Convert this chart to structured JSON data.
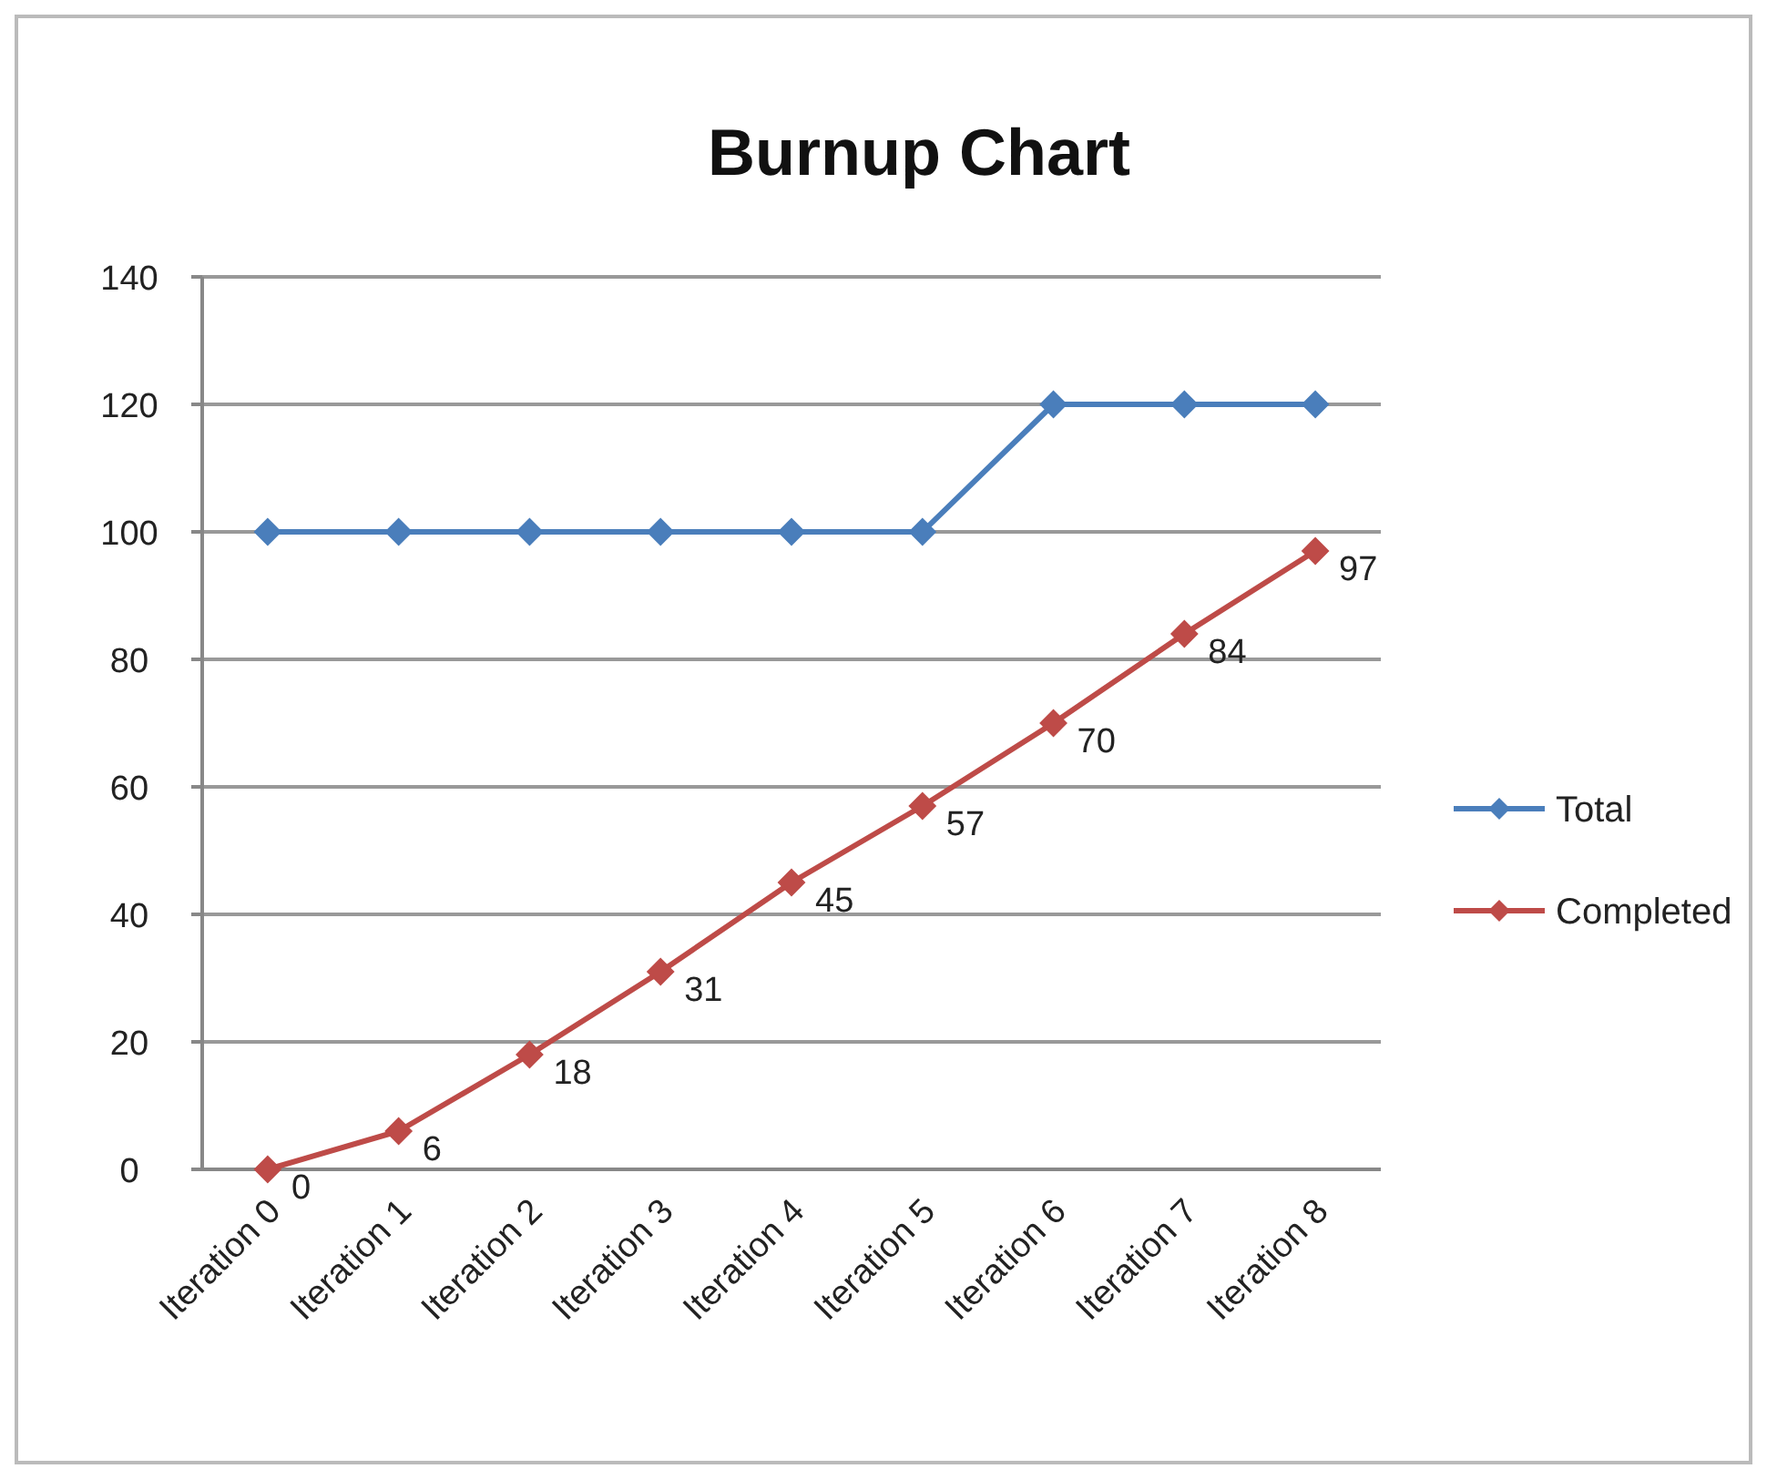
{
  "chart_data": {
    "type": "line",
    "title": "Burnup Chart",
    "categories": [
      "Iteration 0",
      "Iteration 1",
      "Iteration 2",
      "Iteration 3",
      "Iteration 4",
      "Iteration 5",
      "Iteration 6",
      "Iteration 7",
      "Iteration 8"
    ],
    "series": [
      {
        "name": "Total",
        "color": "#4a7ebb",
        "values": [
          100,
          100,
          100,
          100,
          100,
          100,
          120,
          120,
          120
        ]
      },
      {
        "name": "Completed",
        "color": "#be4b48",
        "values": [
          0,
          6,
          18,
          31,
          45,
          57,
          70,
          84,
          97
        ],
        "value_labels": [
          "0",
          "6",
          "18",
          "31",
          "45",
          "57",
          "70",
          "84",
          "97"
        ]
      }
    ],
    "ylim": [
      0,
      140
    ],
    "yticks": [
      0,
      20,
      40,
      60,
      80,
      100,
      120,
      140
    ],
    "grid": "y",
    "legend": "right",
    "marker": "diamond",
    "line_style": "solid"
  }
}
